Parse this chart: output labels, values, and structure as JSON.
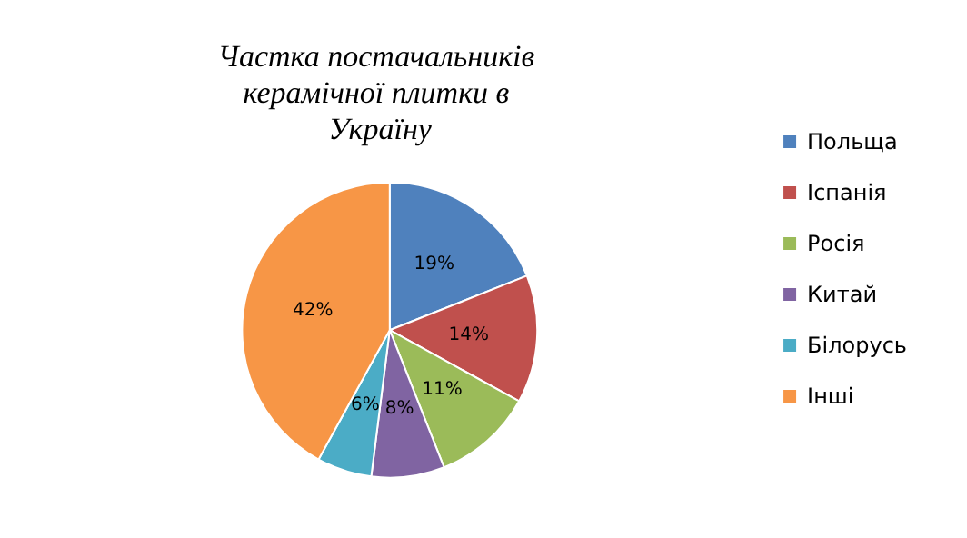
{
  "chart_data": {
    "type": "pie",
    "title": "Частка постачальників керамічної плитки в Україну",
    "categories": [
      "Польща",
      "Іспанія",
      "Росія",
      "Китай",
      "Білорусь",
      "Інші"
    ],
    "values": [
      19,
      14,
      11,
      8,
      6,
      42
    ],
    "colors": [
      "#4f81bd",
      "#c0504d",
      "#9bbb59",
      "#8064a2",
      "#4bacc6",
      "#f79646"
    ],
    "value_labels": [
      "19%",
      "14%",
      "11%",
      "8%",
      "6%",
      "42%"
    ],
    "legend": "right"
  }
}
